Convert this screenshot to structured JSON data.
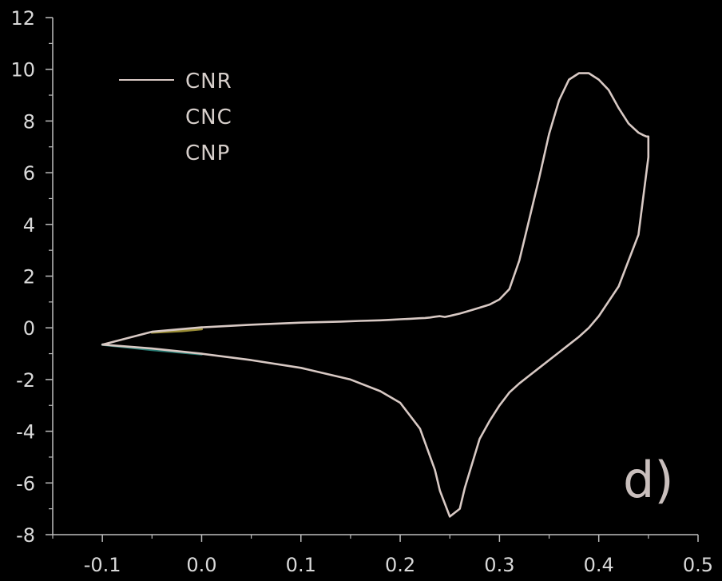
{
  "chart_data": {
    "type": "line",
    "xlim": [
      -0.15,
      0.5
    ],
    "ylim": [
      -8,
      12
    ],
    "x_ticks": [
      -0.1,
      0.0,
      0.1,
      0.2,
      0.3,
      0.4,
      0.5
    ],
    "x_tick_labels": [
      "-0.1",
      "0.0",
      "0.1",
      "0.2",
      "0.3",
      "0.4",
      "0.5"
    ],
    "y_ticks": [
      -8,
      -6,
      -4,
      -2,
      0,
      2,
      4,
      6,
      8,
      10,
      12
    ],
    "y_tick_labels": [
      "-8",
      "-6",
      "-4",
      "-2",
      "0",
      "2",
      "4",
      "6",
      "8",
      "10",
      "12"
    ],
    "grid": false,
    "legend_position": "top-left",
    "panel_label": "d)",
    "series": [
      {
        "name": "CNR",
        "color": "#d8c9c4",
        "x": [
          -0.1,
          -0.05,
          0.0,
          0.05,
          0.1,
          0.15,
          0.18,
          0.2,
          0.22,
          0.235,
          0.24,
          0.25,
          0.26,
          0.265,
          0.28,
          0.29,
          0.3,
          0.31,
          0.32,
          0.33,
          0.34,
          0.35,
          0.36,
          0.37,
          0.38,
          0.39,
          0.4,
          0.42,
          0.44,
          0.45,
          0.45,
          0.448,
          0.445,
          0.44,
          0.43,
          0.42,
          0.41,
          0.4,
          0.39,
          0.38,
          0.37,
          0.36,
          0.35,
          0.34,
          0.33,
          0.32,
          0.31,
          0.3,
          0.29,
          0.28,
          0.27,
          0.26,
          0.25,
          0.245,
          0.24,
          0.235,
          0.23,
          0.225,
          0.22,
          0.21,
          0.2,
          0.19,
          0.18,
          0.16,
          0.14,
          0.12,
          0.1,
          0.05,
          0.0,
          -0.05,
          -0.1
        ],
        "y": [
          -0.65,
          -0.8,
          -1.0,
          -1.25,
          -1.55,
          -2.0,
          -2.45,
          -2.9,
          -3.9,
          -5.5,
          -6.3,
          -7.3,
          -7.0,
          -6.2,
          -4.3,
          -3.6,
          -3.0,
          -2.5,
          -2.15,
          -1.85,
          -1.55,
          -1.25,
          -0.95,
          -0.65,
          -0.35,
          0.0,
          0.45,
          1.6,
          3.6,
          6.6,
          7.4,
          7.4,
          7.45,
          7.55,
          7.9,
          8.5,
          9.2,
          9.6,
          9.85,
          9.85,
          9.6,
          8.8,
          7.5,
          5.8,
          4.2,
          2.6,
          1.5,
          1.1,
          0.9,
          0.78,
          0.66,
          0.55,
          0.46,
          0.42,
          0.45,
          0.43,
          0.4,
          0.38,
          0.37,
          0.35,
          0.33,
          0.31,
          0.29,
          0.27,
          0.24,
          0.22,
          0.2,
          0.12,
          0.02,
          -0.15,
          -0.65
        ]
      },
      {
        "name": "CNC",
        "color": "#2e8f86",
        "x": [
          -0.1,
          -0.05,
          0.0
        ],
        "y": [
          -0.65,
          -0.85,
          -1.02
        ]
      },
      {
        "name": "CNP",
        "color": "#b5a640",
        "x": [
          -0.05,
          -0.02,
          0.0
        ],
        "y": [
          -0.18,
          -0.12,
          -0.05
        ]
      }
    ]
  }
}
